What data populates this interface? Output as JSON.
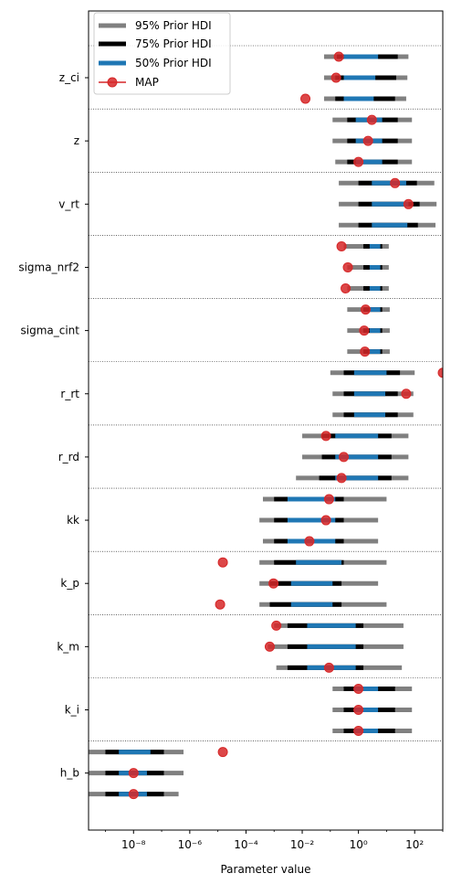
{
  "chart_data": {
    "type": "forest",
    "xlabel": "Parameter value",
    "xscale": "log",
    "xlim_log10": [
      -9.6,
      3.0
    ],
    "x_tick_exponents": [
      -8,
      -6,
      -4,
      -2,
      0,
      2
    ],
    "x_tick_labels": [
      "10⁻⁸",
      "10⁻⁶",
      "10⁻⁴",
      "10⁻²",
      "10⁰",
      "10²"
    ],
    "legend": {
      "placement": "top-left",
      "entries": [
        "95% Prior HDI",
        "75% Prior HDI",
        "50% Prior HDI",
        "MAP"
      ]
    },
    "colors": {
      "hdi95": "#808080",
      "hdi75": "#000000",
      "hdi50": "#1f77b4",
      "map": "#d62728"
    },
    "parameters": [
      {
        "name": "z_ci",
        "rows": [
          {
            "hdi95": [
              0.06,
              60
            ],
            "hdi75": [
              0.17,
              25
            ],
            "hdi50": [
              0.3,
              5
            ],
            "map": 0.2
          },
          {
            "hdi95": [
              0.06,
              55
            ],
            "hdi75": [
              0.15,
              22
            ],
            "hdi50": [
              0.3,
              4
            ],
            "map": 0.16
          },
          {
            "hdi95": [
              0.06,
              50
            ],
            "hdi75": [
              0.15,
              20
            ],
            "hdi50": [
              0.3,
              3.5
            ],
            "map": 0.013
          }
        ]
      },
      {
        "name": "z",
        "rows": [
          {
            "hdi95": [
              0.12,
              80
            ],
            "hdi75": [
              0.4,
              25
            ],
            "hdi50": [
              0.8,
              7
            ],
            "map": 3
          },
          {
            "hdi95": [
              0.12,
              80
            ],
            "hdi75": [
              0.4,
              25
            ],
            "hdi50": [
              0.8,
              7
            ],
            "map": 2.2
          },
          {
            "hdi95": [
              0.15,
              80
            ],
            "hdi75": [
              0.4,
              25
            ],
            "hdi50": [
              0.8,
              7
            ],
            "map": 1.0
          }
        ]
      },
      {
        "name": "v_rt",
        "rows": [
          {
            "hdi95": [
              0.2,
              500
            ],
            "hdi75": [
              1,
              120
            ],
            "hdi50": [
              3,
              50
            ],
            "map": 20
          },
          {
            "hdi95": [
              0.2,
              600
            ],
            "hdi75": [
              1,
              150
            ],
            "hdi50": [
              3,
              60
            ],
            "map": 60
          },
          {
            "hdi95": [
              0.2,
              550
            ],
            "hdi75": [
              1,
              130
            ],
            "hdi50": [
              3,
              55
            ],
            "map": null
          }
        ]
      },
      {
        "name": "sigma_nrf2",
        "rows": [
          {
            "hdi95": [
              0.3,
              12
            ],
            "hdi75": [
              1.5,
              7
            ],
            "hdi50": [
              2.5,
              6
            ],
            "map": 0.25
          },
          {
            "hdi95": [
              0.4,
              12
            ],
            "hdi75": [
              1.5,
              7
            ],
            "hdi50": [
              2.5,
              6
            ],
            "map": 0.42
          },
          {
            "hdi95": [
              0.4,
              12
            ],
            "hdi75": [
              1.5,
              7
            ],
            "hdi50": [
              2.5,
              6
            ],
            "map": 0.35
          }
        ]
      },
      {
        "name": "sigma_cint",
        "rows": [
          {
            "hdi95": [
              0.4,
              13
            ],
            "hdi75": [
              1.5,
              7
            ],
            "hdi50": [
              2.5,
              6
            ],
            "map": 1.8
          },
          {
            "hdi95": [
              0.4,
              13
            ],
            "hdi75": [
              1.5,
              7
            ],
            "hdi50": [
              2.5,
              6
            ],
            "map": 1.6
          },
          {
            "hdi95": [
              0.4,
              13
            ],
            "hdi75": [
              1.5,
              7
            ],
            "hdi50": [
              2.5,
              6
            ],
            "map": 1.7
          }
        ]
      },
      {
        "name": "r_rt",
        "rows": [
          {
            "hdi95": [
              0.1,
              100
            ],
            "hdi75": [
              0.3,
              30
            ],
            "hdi50": [
              0.7,
              10
            ],
            "map": 1000
          },
          {
            "hdi95": [
              0.12,
              90
            ],
            "hdi75": [
              0.3,
              25
            ],
            "hdi50": [
              0.7,
              9
            ],
            "map": 50
          },
          {
            "hdi95": [
              0.12,
              90
            ],
            "hdi75": [
              0.3,
              25
            ],
            "hdi50": [
              0.7,
              9
            ],
            "map": null
          }
        ]
      },
      {
        "name": "r_rd",
        "rows": [
          {
            "hdi95": [
              0.01,
              60
            ],
            "hdi75": [
              0.05,
              15
            ],
            "hdi50": [
              0.15,
              5
            ],
            "map": 0.07
          },
          {
            "hdi95": [
              0.01,
              60
            ],
            "hdi75": [
              0.05,
              15
            ],
            "hdi50": [
              0.15,
              5
            ],
            "map": 0.3
          },
          {
            "hdi95": [
              0.006,
              60
            ],
            "hdi75": [
              0.04,
              15
            ],
            "hdi50": [
              0.15,
              5
            ],
            "map": 0.25
          }
        ]
      },
      {
        "name": "kk",
        "rows": [
          {
            "hdi95": [
              0.0004,
              10
            ],
            "hdi75": [
              0.001,
              0.3
            ],
            "hdi50": [
              0.003,
              0.15
            ],
            "map": 0.09
          },
          {
            "hdi95": [
              0.0003,
              5
            ],
            "hdi75": [
              0.001,
              0.3
            ],
            "hdi50": [
              0.003,
              0.15
            ],
            "map": 0.07
          },
          {
            "hdi95": [
              0.0004,
              5
            ],
            "hdi75": [
              0.001,
              0.3
            ],
            "hdi50": [
              0.003,
              0.15
            ],
            "map": 0.018
          }
        ]
      },
      {
        "name": "k_p",
        "rows": [
          {
            "hdi95": [
              0.0003,
              10
            ],
            "hdi75": [
              0.001,
              0.3
            ],
            "hdi50": [
              0.006,
              0.25
            ],
            "map": 1.5e-05
          },
          {
            "hdi95": [
              0.0003,
              5
            ],
            "hdi75": [
              0.0007,
              0.25
            ],
            "hdi50": [
              0.004,
              0.12
            ],
            "map": 0.00095
          },
          {
            "hdi95": [
              0.0003,
              10
            ],
            "hdi75": [
              0.0007,
              0.25
            ],
            "hdi50": [
              0.004,
              0.12
            ],
            "map": 1.2e-05
          }
        ]
      },
      {
        "name": "k_m",
        "rows": [
          {
            "hdi95": [
              0.001,
              40
            ],
            "hdi75": [
              0.003,
              1.5
            ],
            "hdi50": [
              0.015,
              0.8
            ],
            "map": 0.0012
          },
          {
            "hdi95": [
              0.0006,
              40
            ],
            "hdi75": [
              0.003,
              1.5
            ],
            "hdi50": [
              0.015,
              0.8
            ],
            "map": 0.0007
          },
          {
            "hdi95": [
              0.0012,
              35
            ],
            "hdi75": [
              0.003,
              1.5
            ],
            "hdi50": [
              0.015,
              0.8
            ],
            "map": 0.09
          }
        ]
      },
      {
        "name": "k_i",
        "rows": [
          {
            "hdi95": [
              0.12,
              80
            ],
            "hdi75": [
              0.3,
              20
            ],
            "hdi50": [
              0.7,
              5
            ],
            "map": 1.0
          },
          {
            "hdi95": [
              0.12,
              80
            ],
            "hdi75": [
              0.3,
              20
            ],
            "hdi50": [
              0.7,
              5
            ],
            "map": 1.0
          },
          {
            "hdi95": [
              0.12,
              80
            ],
            "hdi75": [
              0.3,
              20
            ],
            "hdi50": [
              0.7,
              5
            ],
            "map": 1.0
          }
        ]
      },
      {
        "name": "h_b",
        "rows": [
          {
            "hdi95": [
              2.5e-10,
              6e-07
            ],
            "hdi75": [
              1e-09,
              1.2e-07
            ],
            "hdi50": [
              3e-09,
              4e-08
            ],
            "map": 1.5e-05
          },
          {
            "hdi95": [
              2.5e-10,
              6e-07
            ],
            "hdi75": [
              1e-09,
              1.2e-07
            ],
            "hdi50": [
              3e-09,
              3e-08
            ],
            "map": 1e-08
          },
          {
            "hdi95": [
              2.5e-10,
              4e-07
            ],
            "hdi75": [
              1e-09,
              1.2e-07
            ],
            "hdi50": [
              3e-09,
              3e-08
            ],
            "map": 1e-08
          }
        ]
      }
    ]
  }
}
